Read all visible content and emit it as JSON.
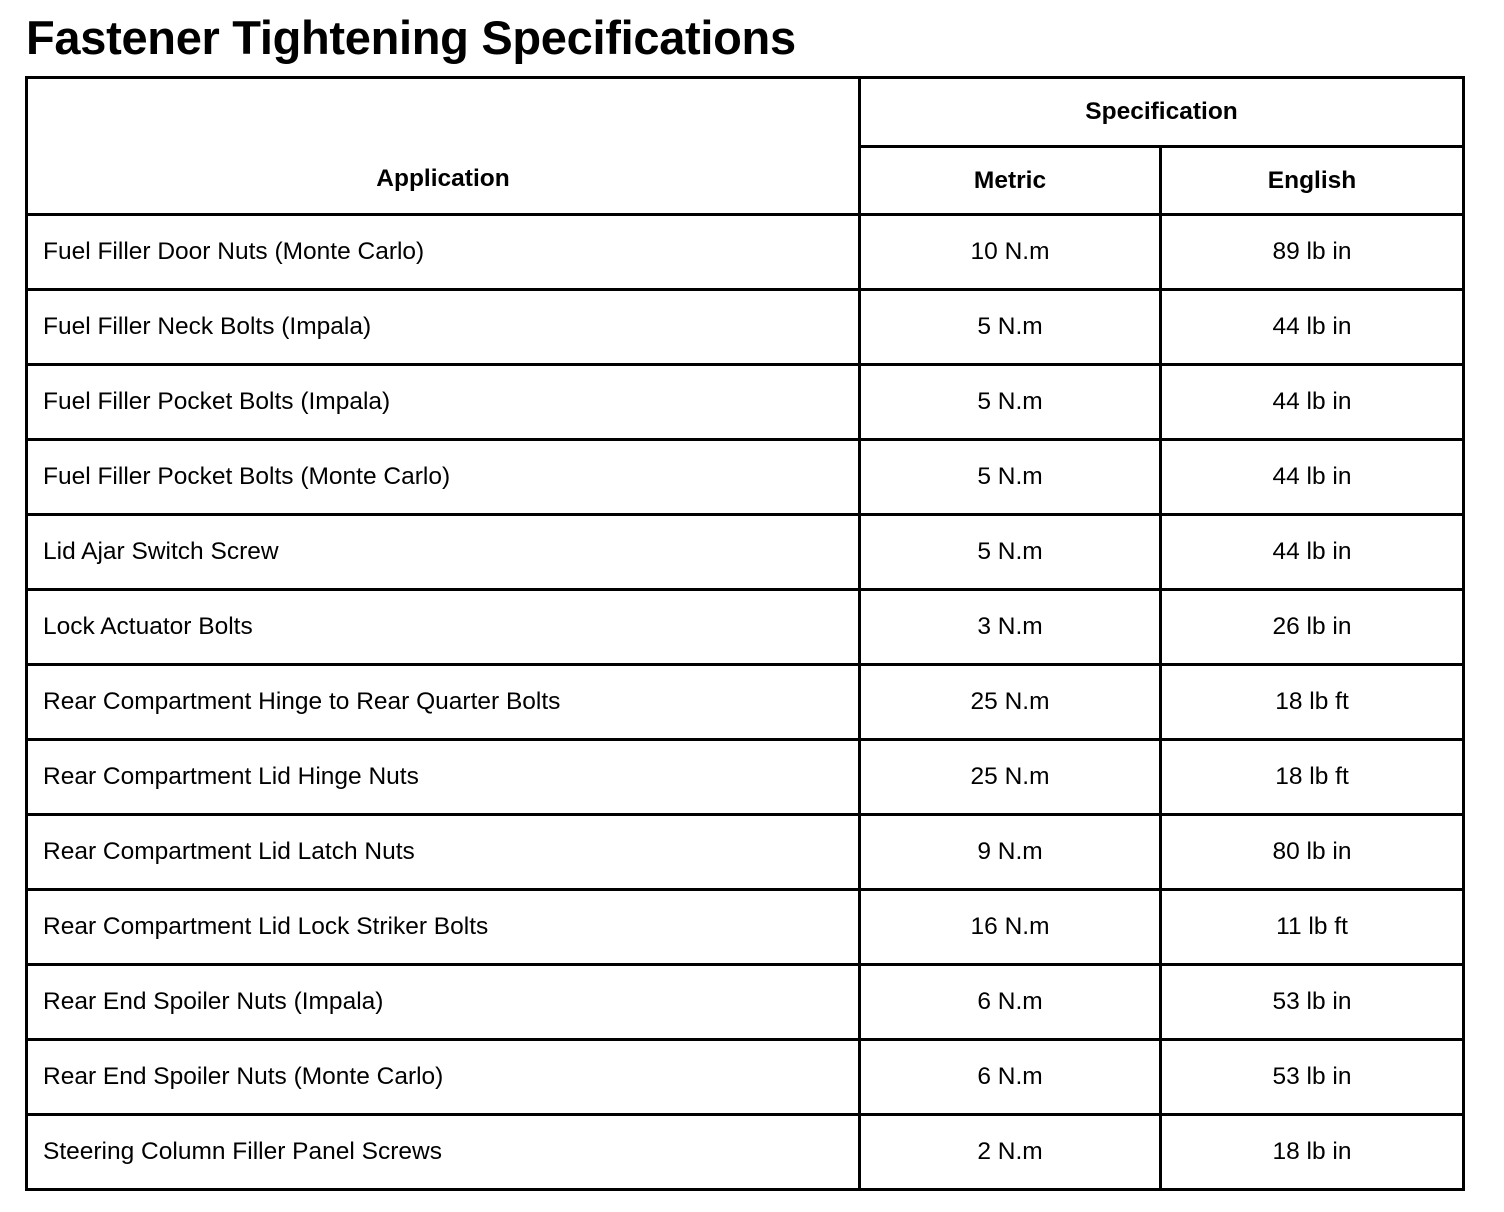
{
  "title": "Fastener Tightening Specifications",
  "headers": {
    "application": "Application",
    "specification": "Specification",
    "metric": "Metric",
    "english": "English"
  },
  "rows": [
    {
      "application": "Fuel Filler Door Nuts (Monte Carlo)",
      "metric": "10 N.m",
      "english": "89 lb in"
    },
    {
      "application": "Fuel Filler Neck Bolts (Impala)",
      "metric": "5 N.m",
      "english": "44 lb in"
    },
    {
      "application": "Fuel Filler Pocket Bolts (Impala)",
      "metric": "5 N.m",
      "english": "44 lb in"
    },
    {
      "application": "Fuel Filler Pocket Bolts (Monte Carlo)",
      "metric": "5 N.m",
      "english": "44 lb in"
    },
    {
      "application": "Lid Ajar Switch Screw",
      "metric": "5 N.m",
      "english": "44 lb in"
    },
    {
      "application": "Lock Actuator Bolts",
      "metric": "3 N.m",
      "english": "26 lb in"
    },
    {
      "application": "Rear Compartment Hinge to Rear Quarter Bolts",
      "metric": "25 N.m",
      "english": "18 lb ft"
    },
    {
      "application": "Rear Compartment Lid Hinge Nuts",
      "metric": "25 N.m",
      "english": "18 lb ft"
    },
    {
      "application": "Rear Compartment Lid Latch Nuts",
      "metric": "9 N.m",
      "english": "80 lb in"
    },
    {
      "application": "Rear Compartment Lid Lock Striker Bolts",
      "metric": "16 N.m",
      "english": "11 lb ft"
    },
    {
      "application": "Rear End Spoiler Nuts (Impala)",
      "metric": "6 N.m",
      "english": "53 lb in"
    },
    {
      "application": "Rear End Spoiler Nuts (Monte Carlo)",
      "metric": "6 N.m",
      "english": "53 lb in"
    },
    {
      "application": "Steering Column Filler Panel Screws",
      "metric": "2 N.m",
      "english": "18 lb in"
    }
  ]
}
